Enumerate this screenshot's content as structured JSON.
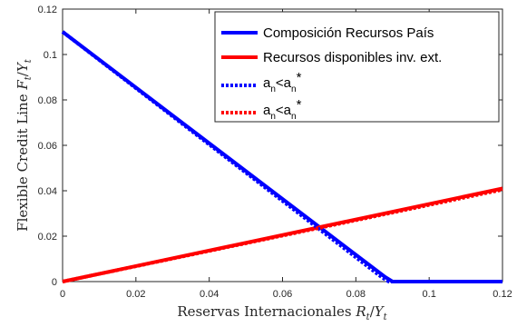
{
  "chart_data": {
    "type": "line",
    "xlabel": "Reservas Internacionales R_t/Y_t",
    "ylabel": "Flexible Credit Line F_t/Y_t",
    "xlabel_parts": {
      "text": "Reservas Internacionales ",
      "var": "R",
      "sub1": "t",
      "slash": "/",
      "var2": "Y",
      "sub2": "t"
    },
    "ylabel_parts": {
      "text": "Flexible Credit Line ",
      "var": "F",
      "sub1": "t",
      "slash": "/",
      "var2": "Y",
      "sub2": "t"
    },
    "xlim": [
      0,
      0.12
    ],
    "ylim": [
      0,
      0.12
    ],
    "x_ticks": [
      0,
      0.02,
      0.04,
      0.06,
      0.08,
      0.1,
      0.12
    ],
    "x_tick_labels": [
      "0",
      "0.02",
      "0.04",
      "0.06",
      "0.08",
      "0.1",
      "0.12"
    ],
    "y_ticks": [
      0,
      0.02,
      0.04,
      0.06,
      0.08,
      0.1,
      0.12
    ],
    "y_tick_labels": [
      "0",
      "0.02",
      "0.04",
      "0.06",
      "0.08",
      "0.1",
      "0.12"
    ],
    "grid": false,
    "legend_position": "top-right",
    "series": [
      {
        "name": "Composición Recursos País",
        "color": "#0000ff",
        "style": "solid",
        "x": [
          0,
          0.088,
          0.09,
          0.12
        ],
        "y": [
          0.11,
          0.002,
          0,
          0
        ]
      },
      {
        "name": "Recursos disponibles inv. ext.",
        "color": "#ff0000",
        "style": "solid",
        "x": [
          0,
          0.12
        ],
        "y": [
          0,
          0.041
        ]
      },
      {
        "name": "a_n<a_n*",
        "color": "#0000ff",
        "style": "dotted",
        "x": [
          0,
          0.087,
          0.089,
          0.12
        ],
        "y": [
          0.11,
          0.002,
          0,
          0
        ]
      },
      {
        "name": "a_n<a_n*",
        "color": "#ff0000",
        "style": "dotted",
        "x": [
          0,
          0.12
        ],
        "y": [
          0,
          0.0405
        ]
      }
    ],
    "legend": [
      {
        "text": "Composición Recursos País",
        "color": "#0000ff",
        "style": "solid"
      },
      {
        "text": "Recursos disponibles inv. ext.",
        "color": "#ff0000",
        "style": "solid"
      },
      {
        "text_parts": {
          "a": "a",
          "n1": "n",
          "lt": "<a",
          "n2": "n",
          "star": "*"
        },
        "color": "#0000ff",
        "style": "dotted"
      },
      {
        "text_parts": {
          "a": "a",
          "n1": "n",
          "lt": "<a",
          "n2": "n",
          "star": "*"
        },
        "color": "#ff0000",
        "style": "dotted"
      }
    ]
  }
}
